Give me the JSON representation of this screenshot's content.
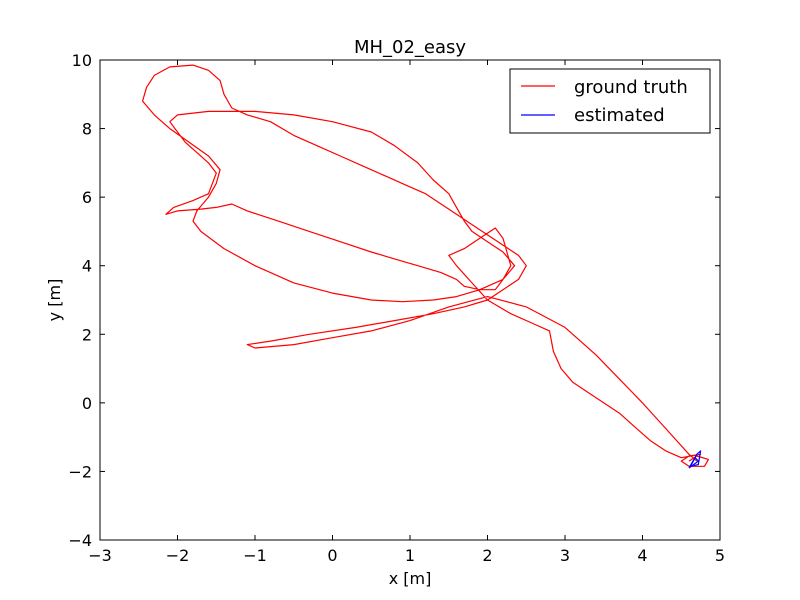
{
  "chart_data": {
    "type": "line",
    "title": "MH_02_easy",
    "xlabel": "x [m]",
    "ylabel": "y [m]",
    "xlim": [
      -3,
      5
    ],
    "ylim": [
      -4,
      10
    ],
    "x_ticks": [
      -3,
      -2,
      -1,
      0,
      1,
      2,
      3,
      4,
      5
    ],
    "y_ticks": [
      -4,
      -2,
      0,
      2,
      4,
      6,
      8,
      10
    ],
    "x_tick_labels": [
      "−3",
      "−2",
      "−1",
      "0",
      "1",
      "2",
      "3",
      "4",
      "5"
    ],
    "y_tick_labels": [
      "−4",
      "−2",
      "0",
      "2",
      "4",
      "6",
      "8",
      "10"
    ],
    "grid": false,
    "legend_position": "top-right",
    "series": [
      {
        "name": "ground truth",
        "color": "#ff0000",
        "points": [
          [
            4.6,
            -1.7
          ],
          [
            4.7,
            -1.55
          ],
          [
            4.85,
            -1.65
          ],
          [
            4.8,
            -1.85
          ],
          [
            4.6,
            -1.85
          ],
          [
            4.5,
            -1.7
          ],
          [
            4.6,
            -1.55
          ],
          [
            4.75,
            -1.5
          ],
          [
            4.5,
            -1.6
          ],
          [
            4.3,
            -1.4
          ],
          [
            4.1,
            -1.1
          ],
          [
            3.9,
            -0.7
          ],
          [
            3.7,
            -0.3
          ],
          [
            3.5,
            0.0
          ],
          [
            3.3,
            0.3
          ],
          [
            3.1,
            0.6
          ],
          [
            2.95,
            1.0
          ],
          [
            2.85,
            1.5
          ],
          [
            2.8,
            2.1
          ],
          [
            2.6,
            2.3
          ],
          [
            2.3,
            2.6
          ],
          [
            2.0,
            3.0
          ],
          [
            1.8,
            3.5
          ],
          [
            1.6,
            4.0
          ],
          [
            1.5,
            4.3
          ],
          [
            1.7,
            4.5
          ],
          [
            1.9,
            4.8
          ],
          [
            2.1,
            5.1
          ],
          [
            2.2,
            4.8
          ],
          [
            2.25,
            4.4
          ],
          [
            2.3,
            4.0
          ],
          [
            2.2,
            3.6
          ],
          [
            2.1,
            3.3
          ],
          [
            1.9,
            3.3
          ],
          [
            1.7,
            3.4
          ],
          [
            1.6,
            3.6
          ],
          [
            1.4,
            3.8
          ],
          [
            1.1,
            4.0
          ],
          [
            0.8,
            4.2
          ],
          [
            0.5,
            4.4
          ],
          [
            0.1,
            4.7
          ],
          [
            -0.3,
            5.0
          ],
          [
            -0.7,
            5.3
          ],
          [
            -1.1,
            5.6
          ],
          [
            -1.3,
            5.8
          ],
          [
            -1.5,
            5.7
          ],
          [
            -1.7,
            5.65
          ],
          [
            -2.0,
            5.6
          ],
          [
            -2.15,
            5.5
          ],
          [
            -2.05,
            5.7
          ],
          [
            -1.8,
            5.9
          ],
          [
            -1.6,
            6.1
          ],
          [
            -1.55,
            6.4
          ],
          [
            -1.5,
            6.7
          ],
          [
            -1.6,
            7.0
          ],
          [
            -1.75,
            7.3
          ],
          [
            -1.9,
            7.6
          ],
          [
            -2.0,
            7.9
          ],
          [
            -2.1,
            8.2
          ],
          [
            -2.0,
            8.4
          ],
          [
            -1.6,
            8.5
          ],
          [
            -1.0,
            8.5
          ],
          [
            -0.5,
            8.4
          ],
          [
            0.0,
            8.2
          ],
          [
            0.5,
            7.9
          ],
          [
            0.8,
            7.5
          ],
          [
            1.1,
            7.0
          ],
          [
            1.3,
            6.5
          ],
          [
            1.5,
            6.1
          ],
          [
            1.6,
            5.7
          ],
          [
            1.7,
            5.3
          ],
          [
            1.8,
            5.0
          ],
          [
            2.0,
            4.7
          ],
          [
            2.2,
            4.4
          ],
          [
            2.35,
            4.0
          ],
          [
            2.2,
            3.6
          ],
          [
            1.9,
            3.3
          ],
          [
            1.6,
            3.1
          ],
          [
            1.3,
            3.0
          ],
          [
            0.9,
            2.95
          ],
          [
            0.5,
            3.0
          ],
          [
            0.0,
            3.2
          ],
          [
            -0.5,
            3.5
          ],
          [
            -1.0,
            4.0
          ],
          [
            -1.4,
            4.5
          ],
          [
            -1.7,
            5.0
          ],
          [
            -1.8,
            5.3
          ],
          [
            -1.75,
            5.6
          ],
          [
            -1.6,
            6.0
          ],
          [
            -1.5,
            6.4
          ],
          [
            -1.45,
            6.8
          ],
          [
            -1.6,
            7.2
          ],
          [
            -1.85,
            7.6
          ],
          [
            -2.1,
            8.0
          ],
          [
            -2.3,
            8.4
          ],
          [
            -2.45,
            8.8
          ],
          [
            -2.4,
            9.2
          ],
          [
            -2.3,
            9.55
          ],
          [
            -2.1,
            9.8
          ],
          [
            -1.8,
            9.85
          ],
          [
            -1.6,
            9.7
          ],
          [
            -1.45,
            9.4
          ],
          [
            -1.4,
            9.0
          ],
          [
            -1.3,
            8.6
          ],
          [
            -1.1,
            8.4
          ],
          [
            -0.8,
            8.2
          ],
          [
            -0.5,
            7.8
          ],
          [
            -0.2,
            7.5
          ],
          [
            0.1,
            7.2
          ],
          [
            0.4,
            6.9
          ],
          [
            0.7,
            6.6
          ],
          [
            1.0,
            6.3
          ],
          [
            1.2,
            6.1
          ],
          [
            1.4,
            5.8
          ],
          [
            1.6,
            5.5
          ],
          [
            1.8,
            5.2
          ],
          [
            2.0,
            4.9
          ],
          [
            2.2,
            4.6
          ],
          [
            2.4,
            4.3
          ],
          [
            2.5,
            4.0
          ],
          [
            2.4,
            3.6
          ],
          [
            2.2,
            3.3
          ],
          [
            2.0,
            3.0
          ],
          [
            1.7,
            2.8
          ],
          [
            1.3,
            2.6
          ],
          [
            0.8,
            2.4
          ],
          [
            0.3,
            2.2
          ],
          [
            -0.3,
            2.0
          ],
          [
            -0.8,
            1.8
          ],
          [
            -1.1,
            1.7
          ],
          [
            -1.0,
            1.6
          ],
          [
            -0.5,
            1.7
          ],
          [
            0.0,
            1.9
          ],
          [
            0.5,
            2.1
          ],
          [
            1.0,
            2.4
          ],
          [
            1.5,
            2.8
          ],
          [
            2.0,
            3.1
          ],
          [
            2.5,
            2.8
          ],
          [
            3.0,
            2.2
          ],
          [
            3.4,
            1.4
          ],
          [
            3.7,
            0.7
          ],
          [
            4.0,
            0.0
          ],
          [
            4.2,
            -0.5
          ],
          [
            4.4,
            -1.0
          ],
          [
            4.6,
            -1.5
          ],
          [
            4.7,
            -1.7
          ]
        ]
      },
      {
        "name": "estimated",
        "color": "#0000ff",
        "points": [
          [
            4.6,
            -1.9
          ],
          [
            4.7,
            -1.5
          ],
          [
            4.75,
            -1.4
          ],
          [
            4.72,
            -1.8
          ],
          [
            4.62,
            -1.85
          ],
          [
            4.68,
            -1.6
          ],
          [
            4.72,
            -1.7
          ],
          [
            4.6,
            -1.9
          ]
        ]
      }
    ]
  }
}
